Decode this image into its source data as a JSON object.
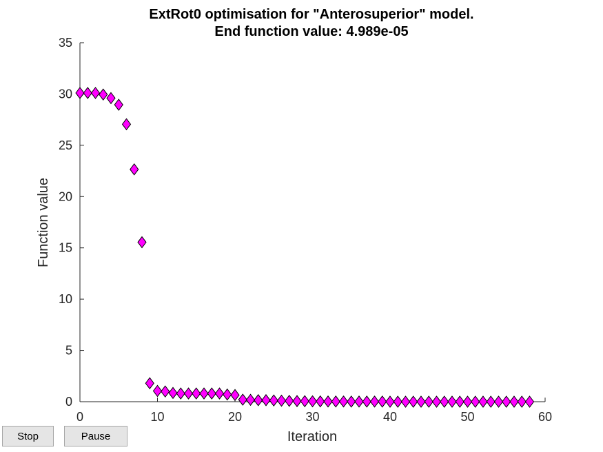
{
  "buttons": {
    "stop_label": "Stop",
    "pause_label": "Pause"
  },
  "chart_data": {
    "type": "scatter",
    "title": "ExtRot0 optimisation for \"Anterosuperior\" model.",
    "subtitle": "End function value: 4.989e-05",
    "xlabel": "Iteration",
    "ylabel": "Function value",
    "xlim": [
      0,
      60
    ],
    "ylim": [
      0,
      35
    ],
    "xticks": [
      "0",
      "10",
      "20",
      "30",
      "40",
      "50",
      "60"
    ],
    "yticks": [
      "0",
      "5",
      "10",
      "15",
      "20",
      "25",
      "30",
      "35"
    ],
    "grid": false,
    "marker": "diamond",
    "marker_color": "#ff00ff",
    "marker_edge_color": "#000000",
    "series": [
      {
        "x": [
          0,
          1,
          2,
          3,
          4,
          5,
          6,
          7,
          8,
          9,
          10,
          11,
          12,
          13,
          14,
          15,
          16,
          17,
          18,
          19,
          20,
          21,
          22,
          23,
          24,
          25,
          26,
          27,
          28,
          29,
          30,
          31,
          32,
          33,
          34,
          35,
          36,
          37,
          38,
          39,
          40,
          41,
          42,
          43,
          44,
          45,
          46,
          47,
          48,
          49,
          50,
          51,
          52,
          53,
          54,
          55,
          56,
          57,
          58
        ],
        "y": [
          30.1,
          30.1,
          30.1,
          29.95,
          29.6,
          28.95,
          27.05,
          22.65,
          15.55,
          1.8,
          1.05,
          1.0,
          0.85,
          0.8,
          0.8,
          0.8,
          0.8,
          0.8,
          0.8,
          0.7,
          0.65,
          0.2,
          0.18,
          0.15,
          0.15,
          0.12,
          0.1,
          0.08,
          0.06,
          0.05,
          0.04,
          0.03,
          0.02,
          0.02,
          0.02,
          0.01,
          0.01,
          0.01,
          0.01,
          0.01,
          0.0,
          0.0,
          0.0,
          0.0,
          0.0,
          0.0,
          0.0,
          0.0,
          0.0,
          0.0,
          0.0,
          0.0,
          0.0,
          0.0,
          0.0,
          0.0,
          0.0,
          0.0,
          0.0
        ]
      }
    ]
  }
}
